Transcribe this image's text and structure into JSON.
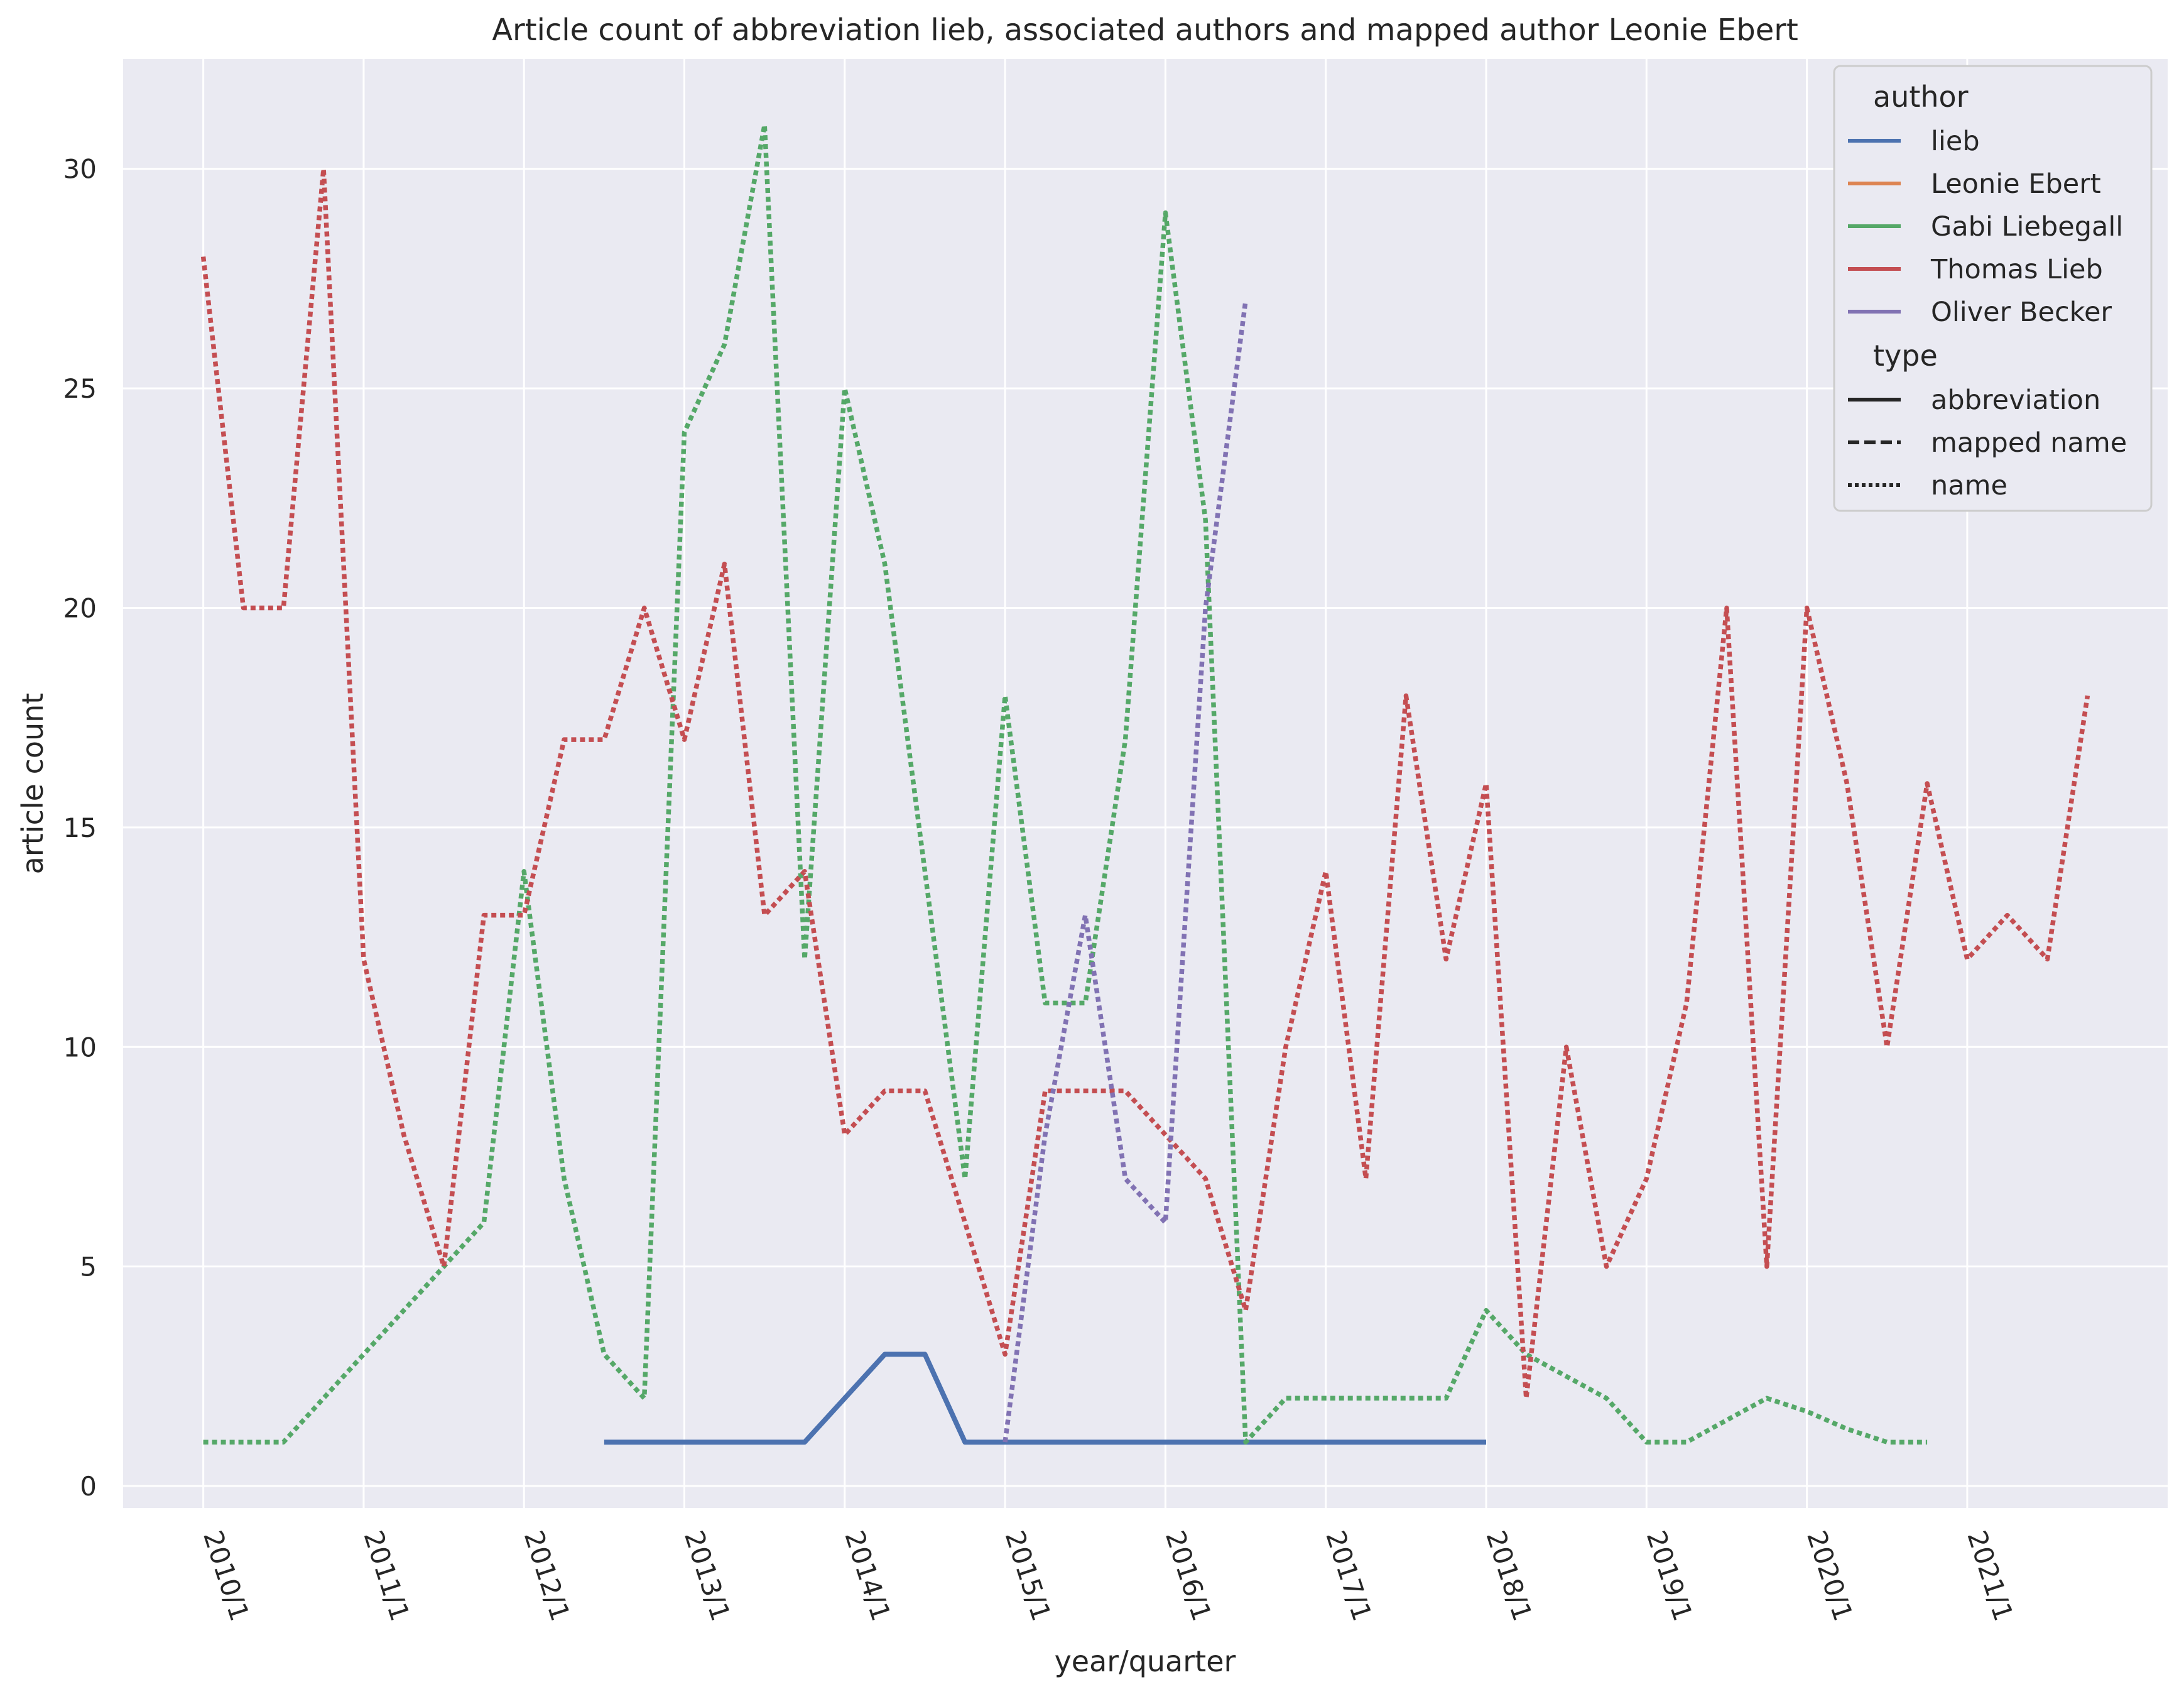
{
  "chart_data": {
    "type": "line",
    "title": "Article count of abbreviation lieb, associated authors and mapped author Leonie Ebert",
    "xlabel": "year/quarter",
    "ylabel": "article count",
    "ylim": [
      -0.5,
      32.5
    ],
    "yticks": [
      0,
      5,
      10,
      15,
      20,
      25,
      30
    ],
    "xlim": [
      "2009/3",
      "2022/2"
    ],
    "xticks": [
      "2010/1",
      "2011/1",
      "2012/1",
      "2013/1",
      "2014/1",
      "2015/1",
      "2016/1",
      "2017/1",
      "2018/1",
      "2019/1",
      "2020/1",
      "2021/1"
    ],
    "grid": true,
    "legend": {
      "placement": "top-right",
      "author_title": "author",
      "type_title": "type",
      "authors": [
        {
          "name": "lieb",
          "color": "#4c72b0"
        },
        {
          "name": "Leonie Ebert",
          "color": "#dd8452"
        },
        {
          "name": "Gabi Liebegall",
          "color": "#55a868"
        },
        {
          "name": "Thomas Lieb",
          "color": "#c44e52"
        },
        {
          "name": "Oliver Becker",
          "color": "#8172b3"
        }
      ],
      "types": [
        {
          "name": "abbreviation",
          "style": "solid"
        },
        {
          "name": "mapped name",
          "style": "dashed"
        },
        {
          "name": "name",
          "style": "dotted"
        }
      ]
    },
    "series": [
      {
        "name": "lieb",
        "type": "abbreviation",
        "color": "#4c72b0",
        "style": "solid",
        "points": [
          [
            "2012/3",
            1
          ],
          [
            "2012/4",
            1
          ],
          [
            "2013/1",
            1
          ],
          [
            "2013/2",
            1
          ],
          [
            "2013/3",
            1
          ],
          [
            "2013/4",
            1
          ],
          [
            "2014/1",
            2
          ],
          [
            "2014/2",
            3
          ],
          [
            "2014/3",
            3
          ],
          [
            "2014/4",
            1
          ],
          [
            "2015/1",
            1
          ],
          [
            "2015/2",
            1
          ],
          [
            "2015/3",
            1
          ],
          [
            "2015/4",
            1
          ],
          [
            "2016/1",
            1
          ],
          [
            "2016/2",
            1
          ],
          [
            "2016/3",
            1
          ],
          [
            "2016/4",
            1
          ],
          [
            "2017/1",
            1
          ],
          [
            "2017/2",
            1
          ],
          [
            "2017/3",
            1
          ],
          [
            "2017/4",
            1
          ],
          [
            "2018/1",
            1
          ]
        ]
      },
      {
        "name": "Gabi Liebegall",
        "type": "name",
        "color": "#55a868",
        "style": "dotted",
        "points": [
          [
            "2010/1",
            1
          ],
          [
            "2010/2",
            1
          ],
          [
            "2010/3",
            1
          ],
          [
            "2010/4",
            2
          ],
          [
            "2011/1",
            3
          ],
          [
            "2011/2",
            4
          ],
          [
            "2011/3",
            5
          ],
          [
            "2011/4",
            6
          ],
          [
            "2012/1",
            14
          ],
          [
            "2012/2",
            7
          ],
          [
            "2012/3",
            3
          ],
          [
            "2012/4",
            2
          ],
          [
            "2013/1",
            24
          ],
          [
            "2013/2",
            26
          ],
          [
            "2013/3",
            31
          ],
          [
            "2013/4",
            12
          ],
          [
            "2014/1",
            25
          ],
          [
            "2014/2",
            21
          ],
          [
            "2014/3",
            14
          ],
          [
            "2014/4",
            7
          ],
          [
            "2015/1",
            18
          ],
          [
            "2015/2",
            11
          ],
          [
            "2015/3",
            11
          ],
          [
            "2015/4",
            17
          ],
          [
            "2016/1",
            29
          ],
          [
            "2016/2",
            22
          ],
          [
            "2016/3",
            1
          ],
          [
            "2016/4",
            2
          ],
          [
            "2017/1",
            2
          ],
          [
            "2017/2",
            2
          ],
          [
            "2017/3",
            2
          ],
          [
            "2017/4",
            2
          ],
          [
            "2018/1",
            4
          ],
          [
            "2018/2",
            3
          ],
          [
            "2018/3",
            2.5
          ],
          [
            "2018/4",
            2
          ],
          [
            "2019/1",
            1
          ],
          [
            "2019/2",
            1
          ],
          [
            "2019/3",
            1.5
          ],
          [
            "2019/4",
            2
          ],
          [
            "2020/1",
            1.7
          ],
          [
            "2020/2",
            1.3
          ],
          [
            "2020/3",
            1
          ],
          [
            "2020/4",
            1
          ]
        ]
      },
      {
        "name": "Thomas Lieb",
        "type": "name",
        "color": "#c44e52",
        "style": "dotted",
        "points": [
          [
            "2010/1",
            28
          ],
          [
            "2010/2",
            20
          ],
          [
            "2010/3",
            20
          ],
          [
            "2010/4",
            30
          ],
          [
            "2011/1",
            12
          ],
          [
            "2011/2",
            8
          ],
          [
            "2011/3",
            5
          ],
          [
            "2011/4",
            13
          ],
          [
            "2012/1",
            13
          ],
          [
            "2012/2",
            17
          ],
          [
            "2012/3",
            17
          ],
          [
            "2012/4",
            20
          ],
          [
            "2013/1",
            17
          ],
          [
            "2013/2",
            21
          ],
          [
            "2013/3",
            13
          ],
          [
            "2013/4",
            14
          ],
          [
            "2014/1",
            8
          ],
          [
            "2014/2",
            9
          ],
          [
            "2014/3",
            9
          ],
          [
            "2014/4",
            6
          ],
          [
            "2015/1",
            3
          ],
          [
            "2015/2",
            9
          ],
          [
            "2015/3",
            9
          ],
          [
            "2015/4",
            9
          ],
          [
            "2016/1",
            8
          ],
          [
            "2016/2",
            7
          ],
          [
            "2016/3",
            4
          ],
          [
            "2016/4",
            10
          ],
          [
            "2017/1",
            14
          ],
          [
            "2017/2",
            7
          ],
          [
            "2017/3",
            18
          ],
          [
            "2017/4",
            12
          ],
          [
            "2018/1",
            16
          ],
          [
            "2018/2",
            2
          ],
          [
            "2018/3",
            10
          ],
          [
            "2018/4",
            5
          ],
          [
            "2019/1",
            7
          ],
          [
            "2019/2",
            11
          ],
          [
            "2019/3",
            20
          ],
          [
            "2019/4",
            5
          ],
          [
            "2020/1",
            20
          ],
          [
            "2020/2",
            16
          ],
          [
            "2020/3",
            10
          ],
          [
            "2020/4",
            16
          ],
          [
            "2021/1",
            12
          ],
          [
            "2021/2",
            13
          ],
          [
            "2021/3",
            12
          ],
          [
            "2021/4",
            18
          ]
        ]
      },
      {
        "name": "Oliver Becker",
        "type": "name",
        "color": "#8172b3",
        "style": "dotted",
        "points": [
          [
            "2015/1",
            1
          ],
          [
            "2015/2",
            8
          ],
          [
            "2015/3",
            13
          ],
          [
            "2015/4",
            7
          ],
          [
            "2016/1",
            6
          ],
          [
            "2016/2",
            20
          ],
          [
            "2016/3",
            27
          ]
        ]
      }
    ]
  }
}
